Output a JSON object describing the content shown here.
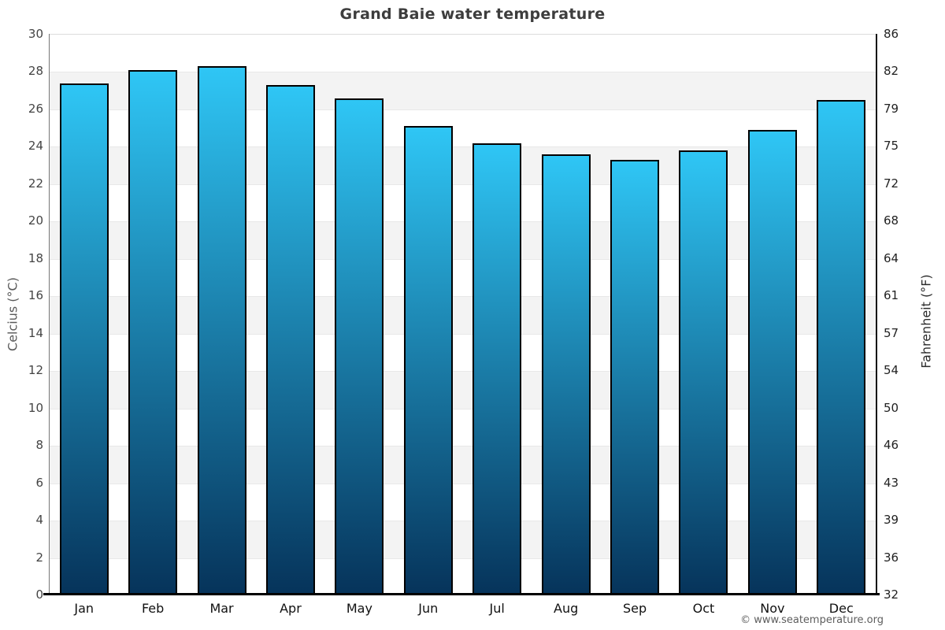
{
  "footer": {
    "copyright": "© www.seatemperature.org"
  },
  "chart_data": {
    "type": "bar",
    "title": "Grand Baie water temperature",
    "categories": [
      "Jan",
      "Feb",
      "Mar",
      "Apr",
      "May",
      "Jun",
      "Jul",
      "Aug",
      "Sep",
      "Oct",
      "Nov",
      "Dec"
    ],
    "values": [
      27.4,
      28.1,
      28.3,
      27.3,
      26.6,
      25.1,
      24.2,
      23.6,
      23.3,
      23.8,
      24.9,
      26.5
    ],
    "xlabel": "",
    "ylabel": "Celcius (°C)",
    "ylabel_right": "Fahrenheit (°F)",
    "ylim": [
      0,
      30
    ],
    "yticks_celsius": [
      0,
      2,
      4,
      6,
      8,
      10,
      12,
      14,
      16,
      18,
      20,
      22,
      24,
      26,
      28,
      30
    ],
    "yticks_fahrenheit": [
      32,
      36,
      39,
      43,
      46,
      50,
      54,
      57,
      61,
      64,
      68,
      72,
      75,
      79,
      82,
      86
    ],
    "grid": "alternating horizontal bands every 2°C",
    "legend": "none",
    "colors": {
      "bar_gradient_top": "#2fc6f5",
      "bar_gradient_bottom": "#06335a",
      "bar_border": "#000000",
      "band_gray": "#f3f3f3",
      "band_white": "#ffffff",
      "gridline": "#e8e8e8",
      "background": "#ffffff",
      "title_text": "#3d3d3d",
      "axis_text_left": "#444444",
      "axis_text_right": "#222222",
      "copyright_text": "#5e5e5e"
    }
  }
}
